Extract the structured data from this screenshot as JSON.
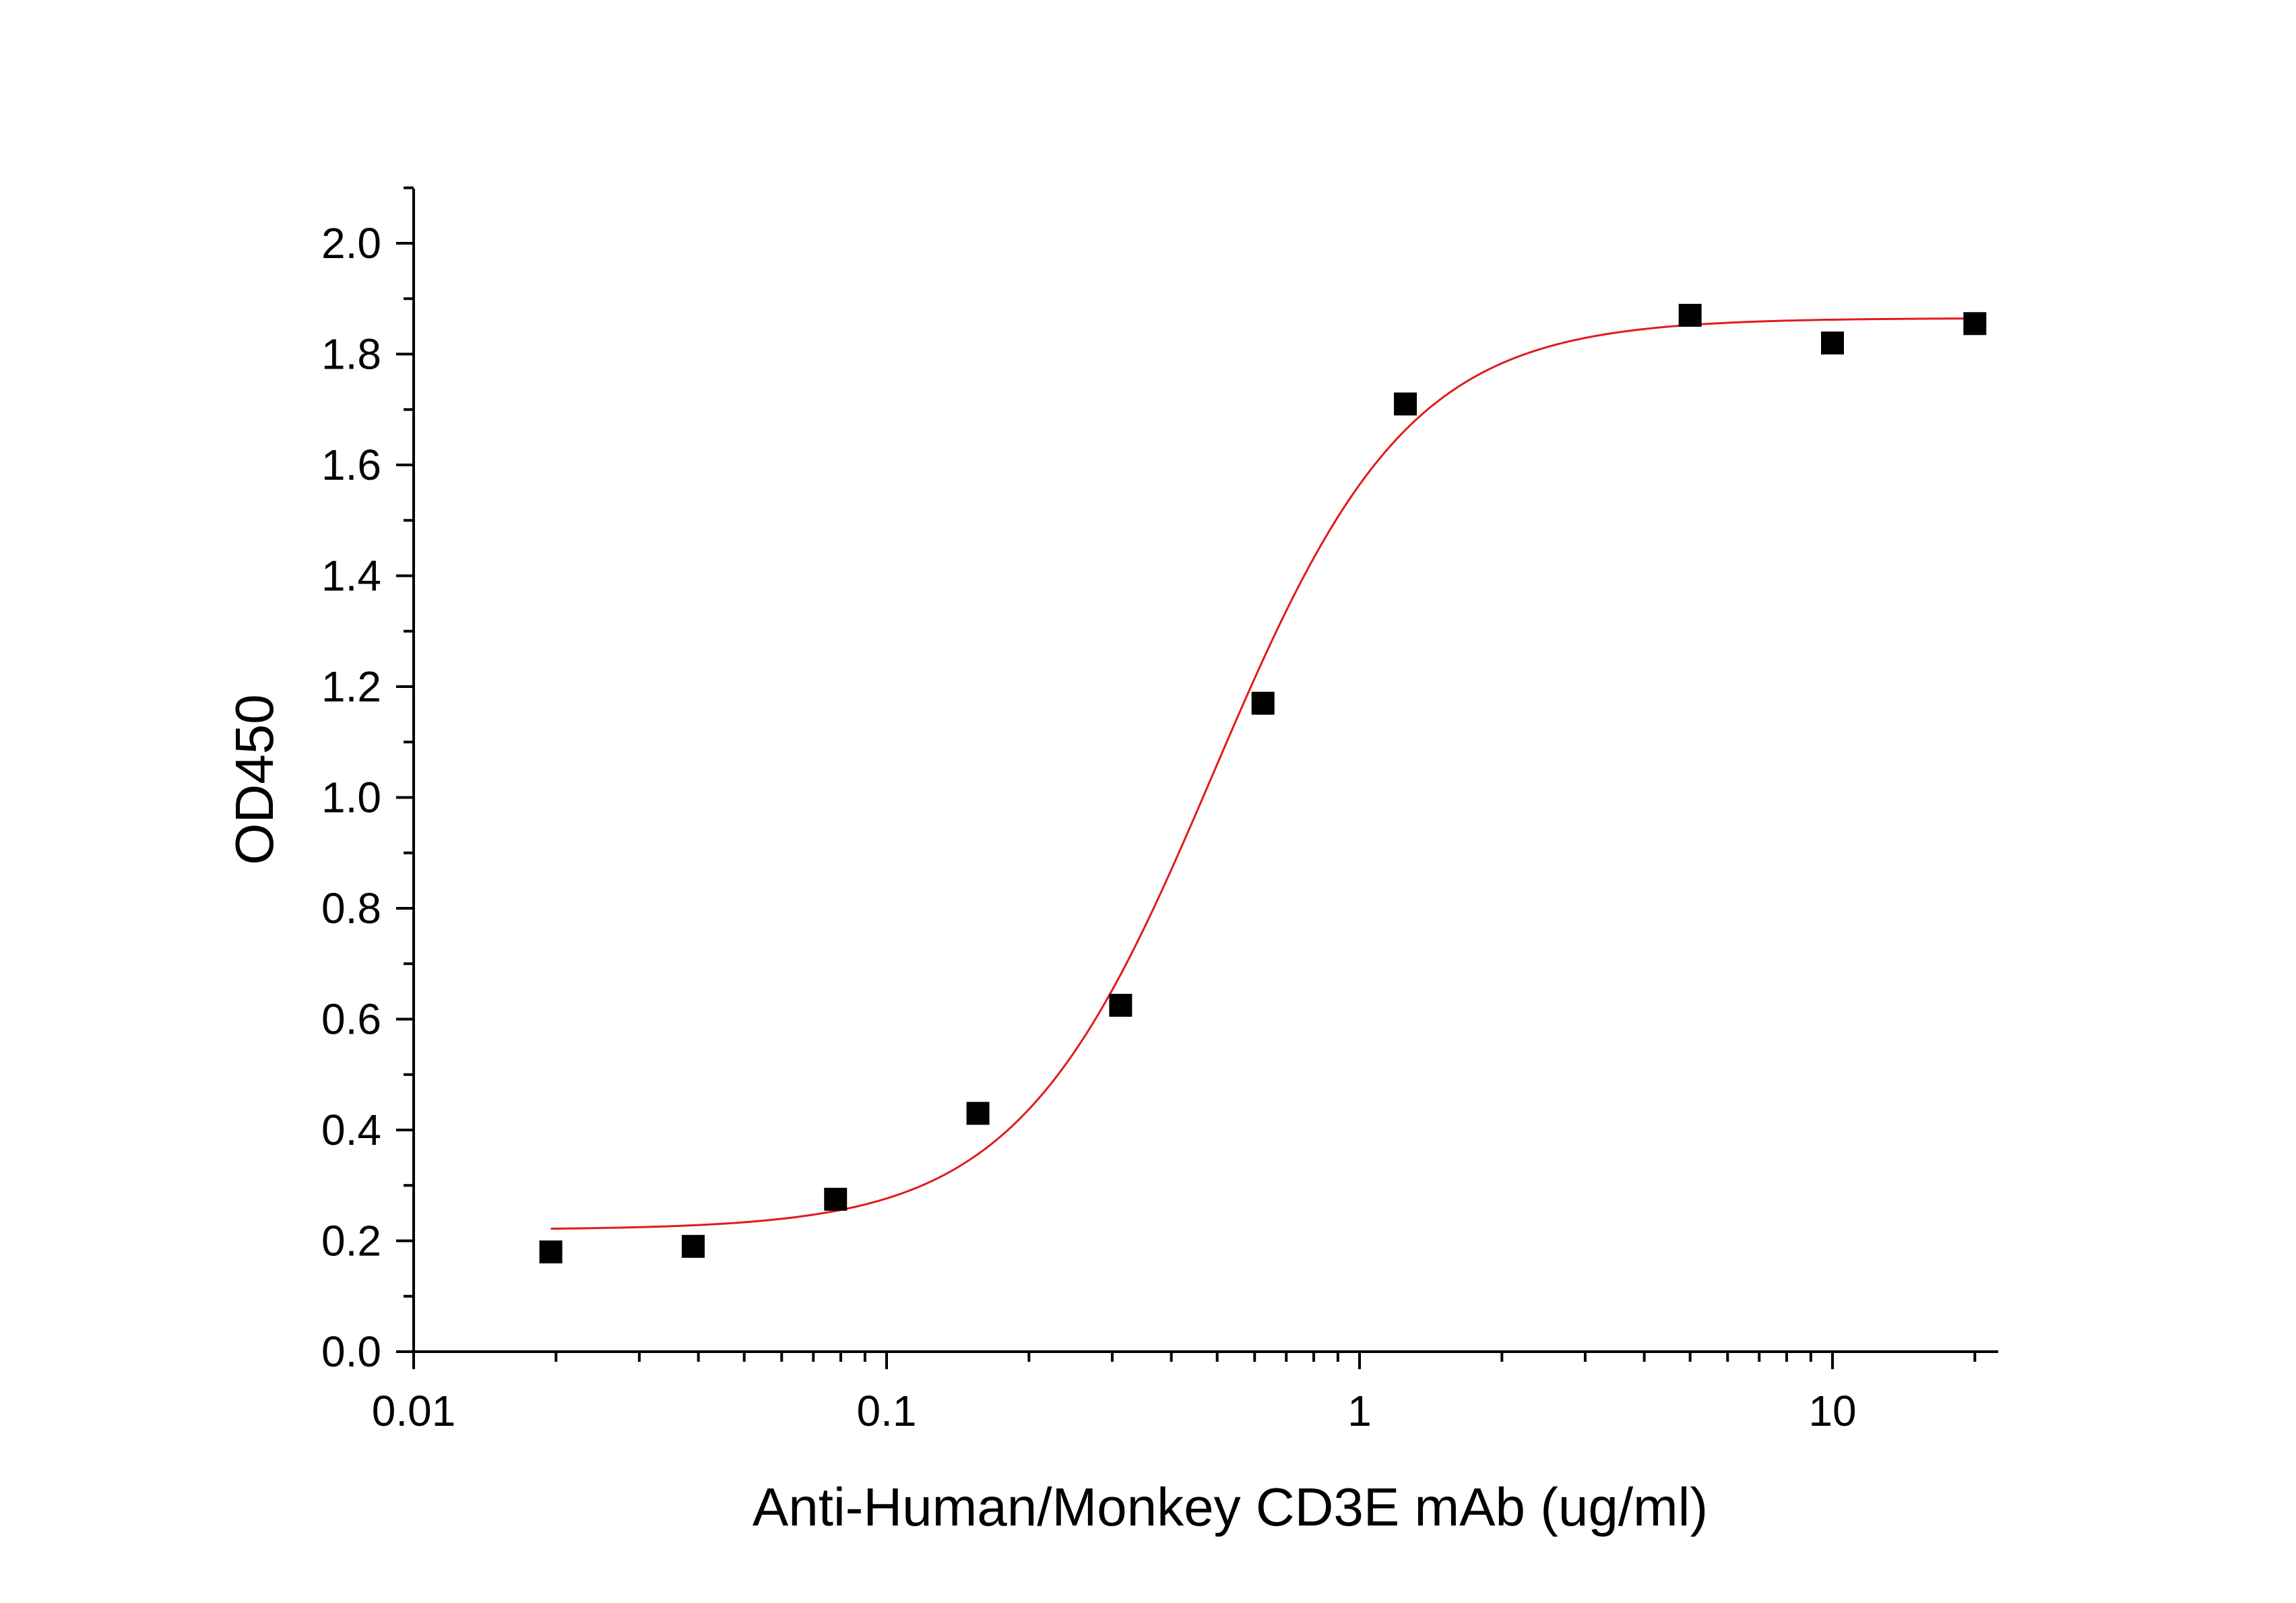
{
  "chart_data": {
    "type": "scatter",
    "title": "",
    "xlabel": "Anti-Human/Monkey CD3E mAb (ug/ml)",
    "ylabel": "OD450",
    "x_scale": "log",
    "xlim": [
      0.01,
      22
    ],
    "ylim": [
      0.0,
      2.1
    ],
    "x_ticks": [
      0.01,
      0.1,
      1,
      10
    ],
    "x_tick_labels": [
      "0.01",
      "0.1",
      "1",
      "10"
    ],
    "y_ticks": [
      0.0,
      0.2,
      0.4,
      0.6,
      0.8,
      1.0,
      1.2,
      1.4,
      1.6,
      1.8,
      2.0
    ],
    "y_tick_labels": [
      "0.0",
      "0.2",
      "0.4",
      "0.6",
      "0.8",
      "1.0",
      "1.2",
      "1.4",
      "1.6",
      "1.8",
      "2.0"
    ],
    "grid": false,
    "legend": "none",
    "series": [
      {
        "kind": "points",
        "marker": "square",
        "color": "#000000",
        "x": [
          0.0195,
          0.039,
          0.078,
          0.156,
          0.3125,
          0.625,
          1.25,
          5.0,
          10.0,
          20.0
        ],
        "y": [
          0.18,
          0.19,
          0.275,
          0.43,
          0.625,
          1.17,
          1.71,
          1.87,
          1.82,
          1.855
        ]
      },
      {
        "kind": "fit-curve",
        "color": "#e31a1c",
        "bottom": 0.22,
        "top": 1.865,
        "ec50": 0.49,
        "hill": 2.1,
        "x_range": [
          0.0195,
          20.0
        ]
      }
    ]
  }
}
